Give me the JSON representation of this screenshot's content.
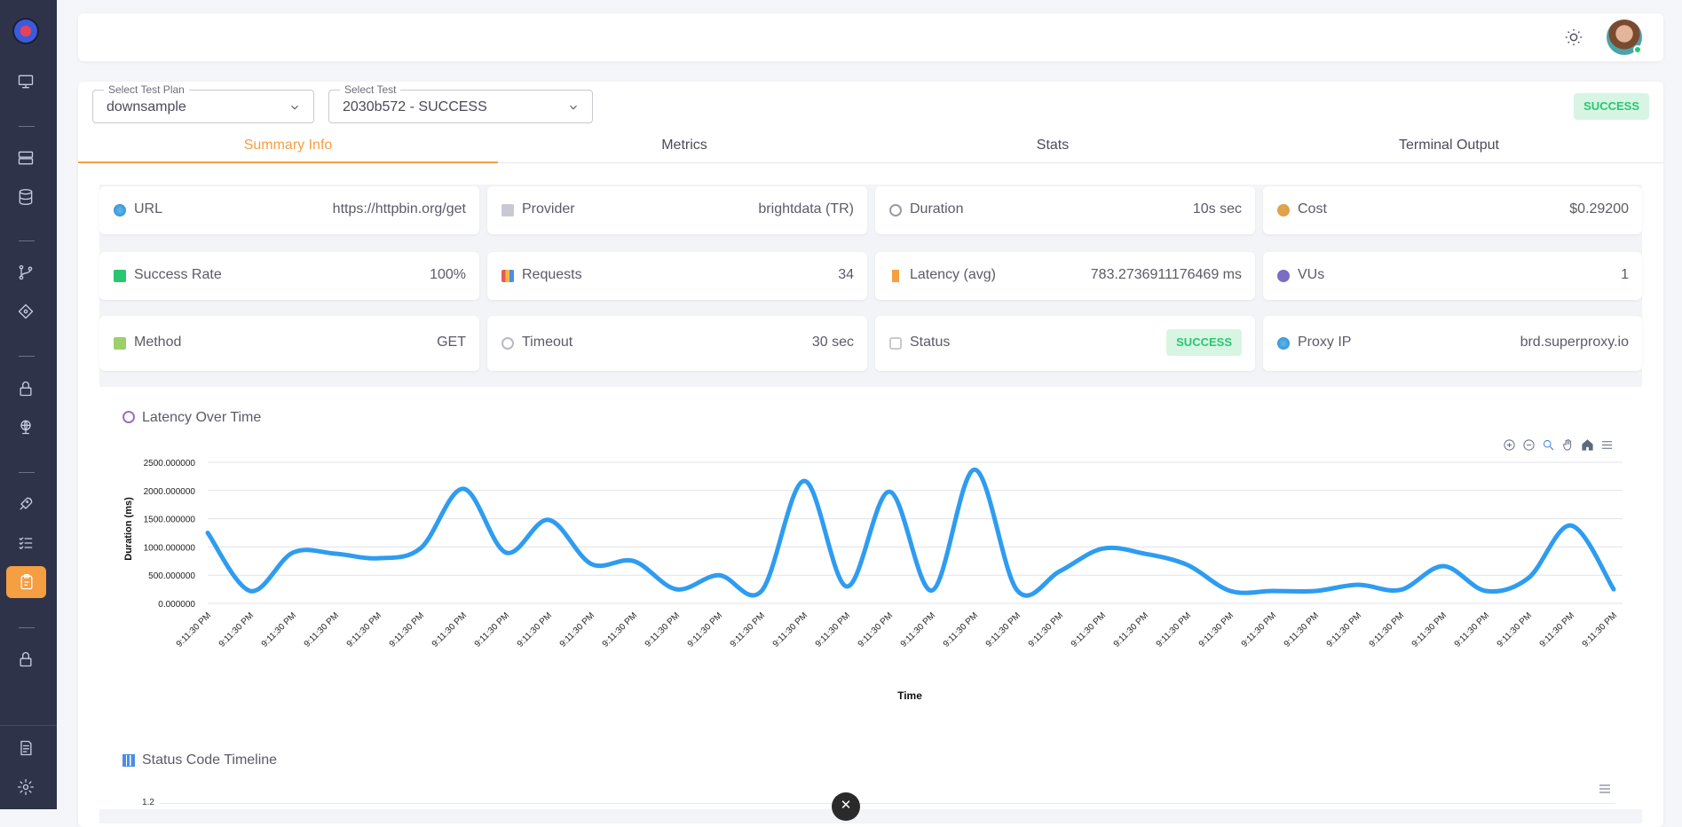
{
  "sidebar": {
    "logo": "app-logo",
    "icons": [
      "monitor-icon",
      "server-icon",
      "database-icon",
      "git-branch-icon",
      "tag-icon",
      "lock-icon",
      "globe-icon",
      "rocket-icon",
      "checklist-icon",
      "clipboard-icon",
      "lock-icon",
      "file-icon",
      "gear-icon"
    ],
    "active": "clipboard-icon"
  },
  "header": {
    "theme_icon": "sun-icon",
    "avatar": "user-avatar"
  },
  "selects": {
    "test_plan": {
      "label": "Select Test Plan",
      "value": "downsample"
    },
    "test": {
      "label": "Select Test",
      "value": "2030b572 - SUCCESS"
    }
  },
  "status_badge": "SUCCESS",
  "tabs": [
    {
      "label": "Summary Info",
      "active": true
    },
    {
      "label": "Metrics"
    },
    {
      "label": "Stats"
    },
    {
      "label": "Terminal Output"
    }
  ],
  "cards": [
    {
      "label": "URL",
      "value": "https://httpbin.org/get",
      "icon": "globe-icon"
    },
    {
      "label": "Provider",
      "value": "brightdata (TR)",
      "icon": "microscope-icon"
    },
    {
      "label": "Duration",
      "value": "10s sec",
      "icon": "clock-icon"
    },
    {
      "label": "Cost",
      "value": "$0.29200",
      "icon": "money-bag-icon"
    },
    {
      "label": "Success Rate",
      "value": "100%",
      "icon": "check-icon"
    },
    {
      "label": "Requests",
      "value": "34",
      "icon": "bar-chart-icon"
    },
    {
      "label": "Latency (avg)",
      "value": "783.2736911176469 ms",
      "icon": "lightning-icon"
    },
    {
      "label": "VUs",
      "value": "1",
      "icon": "users-icon"
    },
    {
      "label": "Method",
      "value": "GET",
      "icon": "pen-icon"
    },
    {
      "label": "Timeout",
      "value": "30 sec",
      "icon": "timer-icon"
    },
    {
      "label": "Status",
      "value": "SUCCESS",
      "icon": "shield-icon"
    },
    {
      "label": "Proxy IP",
      "value": "brd.superproxy.io",
      "icon": "globe-icon"
    }
  ],
  "chart_title": "Latency Over Time",
  "chart2_title": "Status Code Timeline",
  "chart2_tick": "1.2",
  "chart_data": {
    "type": "line",
    "title": "",
    "xlabel": "Time",
    "ylabel": "Duration (ms)",
    "ylim": [
      0,
      2500
    ],
    "yticks": [
      "0.000000",
      "500.000000",
      "1000.000000",
      "1500.000000",
      "2000.000000",
      "2500.000000"
    ],
    "grid": true,
    "color": "#2e9cf0",
    "categories": [
      "9:11:30 PM",
      "9:11:30 PM",
      "9:11:30 PM",
      "9:11:30 PM",
      "9:11:30 PM",
      "9:11:30 PM",
      "9:11:30 PM",
      "9:11:30 PM",
      "9:11:30 PM",
      "9:11:30 PM",
      "9:11:30 PM",
      "9:11:30 PM",
      "9:11:30 PM",
      "9:11:30 PM",
      "9:11:30 PM",
      "9:11:30 PM",
      "9:11:30 PM",
      "9:11:30 PM",
      "9:11:30 PM",
      "9:11:30 PM",
      "9:11:30 PM",
      "9:11:30 PM",
      "9:11:30 PM",
      "9:11:30 PM",
      "9:11:30 PM",
      "9:11:30 PM",
      "9:11:30 PM",
      "9:11:30 PM",
      "9:11:30 PM",
      "9:11:30 PM",
      "9:11:30 PM",
      "9:11:30 PM",
      "9:11:30 PM",
      "9:11:30 PM"
    ],
    "values": [
      1250,
      220,
      900,
      880,
      800,
      980,
      2030,
      900,
      1480,
      700,
      750,
      250,
      500,
      220,
      2170,
      300,
      1980,
      230,
      2370,
      230,
      570,
      970,
      880,
      680,
      220,
      220,
      220,
      330,
      240,
      660,
      220,
      450,
      1380,
      250
    ]
  }
}
